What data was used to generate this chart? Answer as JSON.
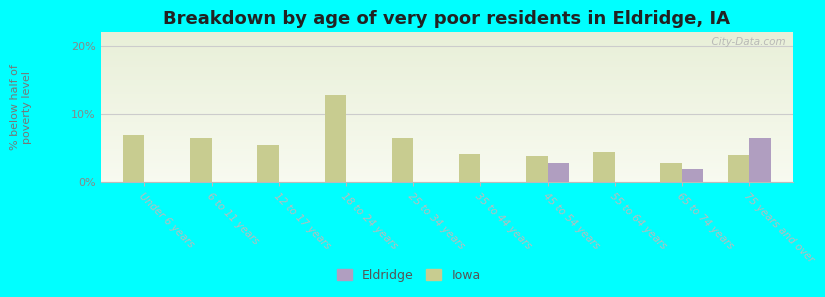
{
  "title": "Breakdown by age of very poor residents in Eldridge, IA",
  "ylabel": "% below half of\npoverty level",
  "categories": [
    "Under 6 years",
    "6 to 11 years",
    "12 to 17 years",
    "18 to 24 years",
    "25 to 34 years",
    "35 to 44 years",
    "45 to 54 years",
    "55 to 64 years",
    "65 to 74 years",
    "75 years and over"
  ],
  "eldridge_values": [
    0,
    0,
    0,
    0,
    0,
    0,
    2.8,
    0,
    2.0,
    6.5
  ],
  "iowa_values": [
    7.0,
    6.5,
    5.5,
    12.8,
    6.5,
    4.2,
    3.8,
    4.5,
    2.8,
    4.0
  ],
  "eldridge_color": "#b09ec0",
  "iowa_color": "#c8cc90",
  "background_color": "#00ffff",
  "plot_bg_top": "#e8efd8",
  "plot_bg_bottom": "#f8faf0",
  "ylim": [
    0,
    22
  ],
  "yticks": [
    0,
    10,
    20
  ],
  "ytick_labels": [
    "0%",
    "10%",
    "20%"
  ],
  "bar_width": 0.32,
  "title_fontsize": 13,
  "axis_label_fontsize": 8,
  "tick_label_fontsize": 7.5,
  "legend_fontsize": 9,
  "watermark": "  City-Data.com"
}
